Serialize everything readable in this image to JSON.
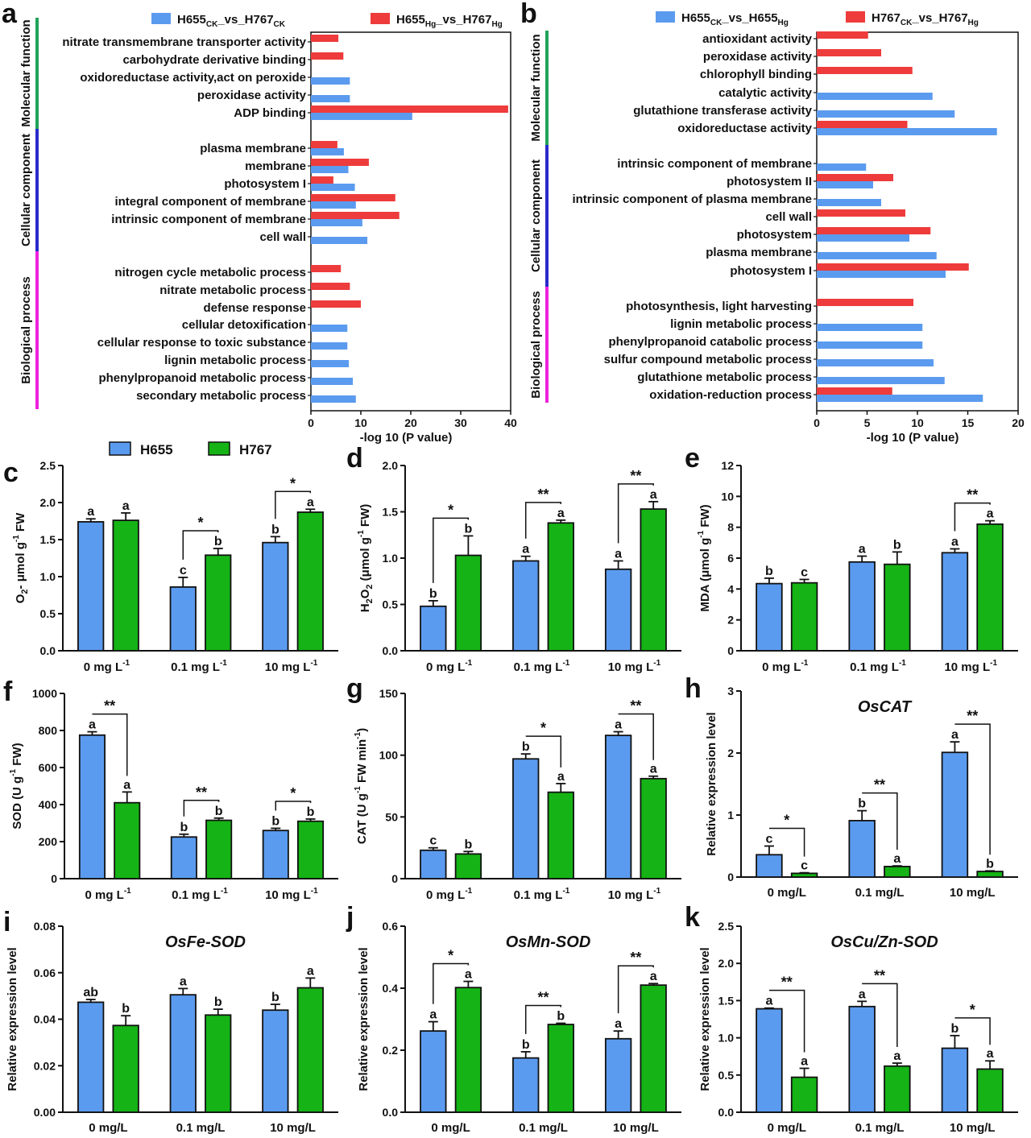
{
  "colors": {
    "blue": "#5b9bef",
    "red": "#ee3b3b",
    "green": "#15b315",
    "mf": "#22a35a",
    "cc": "#2a2acc",
    "bp": "#ee22dd"
  },
  "go_panels": [
    {
      "letter": "a",
      "xlabel": "-log 10 (P value)",
      "xlim": [
        0,
        40
      ],
      "xticks": [
        0,
        10,
        20,
        30,
        40
      ],
      "legend": [
        {
          "base": "H655",
          "sub1": "CK",
          "mid": "_vs_H767",
          "sub2": "CK",
          "color": "blue"
        },
        {
          "base": "H655",
          "sub1": "Hg",
          "mid": "_vs_H767",
          "sub2": "Hg",
          "color": "red"
        }
      ],
      "groups": [
        {
          "name": "Molecular function",
          "color": "mf",
          "terms": [
            {
              "label": "nitrate transmembrane transporter activity",
              "red": 5.5,
              "blue": null
            },
            {
              "label": "carbohydrate derivative binding",
              "red": 6.5,
              "blue": null
            },
            {
              "label": "oxidoreductase activity,act on peroxide",
              "red": null,
              "blue": 7.8
            },
            {
              "label": "peroxidase activity",
              "red": null,
              "blue": 7.8
            },
            {
              "label": "ADP binding",
              "red": 39.5,
              "blue": 20.3
            }
          ]
        },
        {
          "name": "Cellular component",
          "color": "cc",
          "terms": [
            {
              "label": "plasma membrane",
              "red": 5.3,
              "blue": 6.6
            },
            {
              "label": "membrane",
              "red": 11.6,
              "blue": 7.5
            },
            {
              "label": "photosystem I",
              "red": 4.5,
              "blue": 8.8
            },
            {
              "label": "integral component of membrane",
              "red": 16.9,
              "blue": 9.0
            },
            {
              "label": "intrinsic component of membrane",
              "red": 17.7,
              "blue": 10.3
            },
            {
              "label": "cell wall",
              "red": null,
              "blue": 11.3
            }
          ]
        },
        {
          "name": "Biological process",
          "color": "bp",
          "terms": [
            {
              "label": "nitrogen cycle metabolic process",
              "red": 6.0,
              "blue": null
            },
            {
              "label": "nitrate metabolic process",
              "red": 7.8,
              "blue": null
            },
            {
              "label": "defense response",
              "red": 10.0,
              "blue": null
            },
            {
              "label": "cellular detoxification",
              "red": null,
              "blue": 7.3
            },
            {
              "label": "cellular response to toxic substance",
              "red": null,
              "blue": 7.3
            },
            {
              "label": "lignin metabolic process",
              "red": null,
              "blue": 7.6
            },
            {
              "label": "phenylpropanoid metabolic process",
              "red": null,
              "blue": 8.4
            },
            {
              "label": "secondary metabolic process",
              "red": null,
              "blue": 9.0
            }
          ]
        }
      ]
    },
    {
      "letter": "b",
      "xlabel": "-log 10 (P value)",
      "xlim": [
        0,
        20
      ],
      "xticks": [
        0,
        5,
        10,
        15,
        20
      ],
      "legend": [
        {
          "base": "H655",
          "sub1": "CK",
          "mid": "_vs_H655",
          "sub2": "Hg",
          "color": "blue"
        },
        {
          "base": "H767",
          "sub1": "CK",
          "mid": "_vs_H767",
          "sub2": "Hg",
          "color": "red"
        }
      ],
      "groups": [
        {
          "name": "Molecular function",
          "color": "mf",
          "terms": [
            {
              "label": "antioxidant activity",
              "red": 5.1,
              "blue": null
            },
            {
              "label": "peroxidase activity",
              "red": 6.4,
              "blue": null
            },
            {
              "label": "chlorophyll binding",
              "red": 9.5,
              "blue": null
            },
            {
              "label": "catalytic activity",
              "red": null,
              "blue": 11.5
            },
            {
              "label": "glutathione transferase activity",
              "red": null,
              "blue": 13.7
            },
            {
              "label": "oxidoreductase activity",
              "red": 9.0,
              "blue": 17.9
            }
          ]
        },
        {
          "name": "Cellular component",
          "color": "cc",
          "terms": [
            {
              "label": "intrinsic component of membrane",
              "red": null,
              "blue": 4.9
            },
            {
              "label": "photosystem II",
              "red": 7.6,
              "blue": 5.6
            },
            {
              "label": "intrinsic component of plasma membrane",
              "red": null,
              "blue": 6.4
            },
            {
              "label": "cell wall",
              "red": 8.8,
              "blue": null
            },
            {
              "label": "photosystem",
              "red": 11.3,
              "blue": 9.2
            },
            {
              "label": "plasma membrane",
              "red": null,
              "blue": 11.9
            },
            {
              "label": "photosystem I",
              "red": 15.1,
              "blue": 12.8
            }
          ]
        },
        {
          "name": "Biological process",
          "color": "bp",
          "terms": [
            {
              "label": "photosynthesis, light harvesting",
              "red": 9.6,
              "blue": null
            },
            {
              "label": "lignin metabolic process",
              "red": null,
              "blue": 10.5
            },
            {
              "label": "phenylpropanoid catabolic process",
              "red": null,
              "blue": 10.5
            },
            {
              "label": "sulfur compound metabolic process",
              "red": null,
              "blue": 11.6
            },
            {
              "label": "glutathione metabolic process",
              "red": null,
              "blue": 12.7
            },
            {
              "label": "oxidation-reduction process",
              "red": 7.5,
              "blue": 16.5
            }
          ]
        }
      ]
    }
  ],
  "bar_legend": [
    {
      "name": "H655",
      "color": "blue"
    },
    {
      "name": "H767",
      "color": "green"
    }
  ],
  "chart_data": [
    {
      "letter": "c",
      "type": "bar",
      "ylabel": {
        "main": "O",
        "sub": "2",
        "tail": "- μmol g",
        "sup": "-1",
        "end": " FW"
      },
      "ylim": [
        0,
        2.5
      ],
      "yticks": [
        "0.0",
        "0.5",
        "1.0",
        "1.5",
        "2.0",
        "2.5"
      ],
      "cat_style": "unit",
      "title": "",
      "categories": [
        "0",
        "0.1",
        "10"
      ],
      "series": [
        {
          "name": "H655",
          "values": [
            1.74,
            0.86,
            1.46
          ],
          "err": [
            0.04,
            0.13,
            0.08
          ],
          "letters": [
            "a",
            "c",
            "b"
          ]
        },
        {
          "name": "H767",
          "values": [
            1.76,
            1.29,
            1.87
          ],
          "err": [
            0.1,
            0.09,
            0.04
          ],
          "letters": [
            "a",
            "b",
            "a"
          ]
        }
      ],
      "sig": [
        "",
        "*",
        "*"
      ]
    },
    {
      "letter": "d",
      "type": "bar",
      "ylabel": {
        "main": "H",
        "sub": "2",
        "tail": "O",
        "sub2": "2",
        "tail2": " (μmol g",
        "sup": "-1",
        "end": " FW)"
      },
      "ylim": [
        0,
        2.0
      ],
      "yticks": [
        "0.0",
        "0.5",
        "1.0",
        "1.5",
        "2.0"
      ],
      "cat_style": "unit",
      "title": "",
      "categories": [
        "0",
        "0.1",
        "10"
      ],
      "series": [
        {
          "name": "H655",
          "values": [
            0.48,
            0.97,
            0.88
          ],
          "err": [
            0.06,
            0.05,
            0.09
          ],
          "letters": [
            "b",
            "a",
            "a"
          ]
        },
        {
          "name": "H767",
          "values": [
            1.03,
            1.38,
            1.53
          ],
          "err": [
            0.21,
            0.03,
            0.08
          ],
          "letters": [
            "b",
            "a",
            "a"
          ]
        }
      ],
      "sig": [
        "*",
        "**",
        "**"
      ]
    },
    {
      "letter": "e",
      "type": "bar",
      "ylabel": {
        "main": "MDA (μmol g",
        "sup": "-1",
        "end": " FW)"
      },
      "ylim": [
        0,
        12
      ],
      "yticks": [
        "0",
        "2",
        "4",
        "6",
        "8",
        "10",
        "12"
      ],
      "cat_style": "unit",
      "title": "",
      "categories": [
        "0",
        "0.1",
        "10"
      ],
      "series": [
        {
          "name": "H655",
          "values": [
            4.35,
            5.75,
            6.35
          ],
          "err": [
            0.35,
            0.38,
            0.25
          ],
          "letters": [
            "b",
            "a",
            "a"
          ]
        },
        {
          "name": "H767",
          "values": [
            4.4,
            5.6,
            8.2
          ],
          "err": [
            0.22,
            0.8,
            0.22
          ],
          "letters": [
            "c",
            "b",
            "a"
          ]
        }
      ],
      "sig": [
        "",
        "",
        "**"
      ]
    },
    {
      "letter": "f",
      "type": "bar",
      "ylabel": {
        "main": "SOD (U g",
        "sup": "-1",
        "end": " FW)"
      },
      "ylim": [
        0,
        1000
      ],
      "yticks": [
        "0",
        "200",
        "400",
        "600",
        "800",
        "1000"
      ],
      "cat_style": "unit",
      "title": "",
      "categories": [
        "0",
        "0.1",
        "10"
      ],
      "series": [
        {
          "name": "H655",
          "values": [
            775,
            225,
            260
          ],
          "err": [
            18,
            15,
            12
          ],
          "letters": [
            "a",
            "b",
            "b"
          ]
        },
        {
          "name": "H767",
          "values": [
            410,
            315,
            310
          ],
          "err": [
            58,
            12,
            12
          ],
          "letters": [
            "a",
            "b",
            "b"
          ]
        }
      ],
      "sig": [
        "**",
        "**",
        "*"
      ]
    },
    {
      "letter": "g",
      "type": "bar",
      "ylabel": {
        "main": "CAT (U g",
        "sup": "-1",
        "end": " FW min",
        "sup2": "-1",
        "end2": ")"
      },
      "ylim": [
        0,
        150
      ],
      "yticks": [
        "0",
        "50",
        "100",
        "150"
      ],
      "cat_style": "unit",
      "title": "",
      "categories": [
        "0",
        "0.1",
        "10"
      ],
      "series": [
        {
          "name": "H655",
          "values": [
            23,
            97,
            116
          ],
          "err": [
            2,
            4,
            3
          ],
          "letters": [
            "c",
            "b",
            "a"
          ]
        },
        {
          "name": "H767",
          "values": [
            20,
            70,
            81
          ],
          "err": [
            2,
            7,
            2
          ],
          "letters": [
            "b",
            "a",
            "a"
          ]
        }
      ],
      "sig": [
        "",
        "*",
        "**"
      ]
    },
    {
      "letter": "h",
      "type": "bar",
      "ylabel": {
        "main": "Relative expression level"
      },
      "ylim": [
        0,
        3
      ],
      "yticks": [
        "0",
        "1",
        "2",
        "3"
      ],
      "cat_style": "mgl",
      "title": "OsCAT",
      "categories": [
        "0 mg/L",
        "0.1 mg/L",
        "10 mg/L"
      ],
      "series": [
        {
          "name": "H655",
          "values": [
            0.36,
            0.91,
            2.01
          ],
          "err": [
            0.14,
            0.16,
            0.17
          ],
          "letters": [
            "c",
            "b",
            "a"
          ]
        },
        {
          "name": "H767",
          "values": [
            0.06,
            0.17,
            0.09
          ],
          "err": [
            0.01,
            0.01,
            0.01
          ],
          "letters": [
            "c",
            "a",
            "b"
          ]
        }
      ],
      "sig": [
        "*",
        "**",
        "**"
      ]
    },
    {
      "letter": "i",
      "type": "bar",
      "ylabel": {
        "main": "Relative expression level"
      },
      "ylim": [
        0,
        0.08
      ],
      "yticks": [
        "0.00",
        "0.02",
        "0.04",
        "0.06",
        "0.08"
      ],
      "cat_style": "mgl",
      "title": "OsFe-SOD",
      "categories": [
        "0 mg/L",
        "0.1 mg/L",
        "10 mg/L"
      ],
      "series": [
        {
          "name": "H655",
          "values": [
            0.0473,
            0.0505,
            0.0439
          ],
          "err": [
            0.0012,
            0.0027,
            0.0025
          ],
          "letters": [
            "ab",
            "a",
            "b"
          ]
        },
        {
          "name": "H767",
          "values": [
            0.0373,
            0.0418,
            0.0535
          ],
          "err": [
            0.0042,
            0.0025,
            0.0042
          ],
          "letters": [
            "b",
            "b",
            "a"
          ]
        }
      ],
      "sig": [
        "",
        "",
        ""
      ]
    },
    {
      "letter": "j",
      "type": "bar",
      "ylabel": {
        "main": "Relative expression level"
      },
      "ylim": [
        0,
        0.6
      ],
      "yticks": [
        "0.0",
        "0.2",
        "0.4",
        "0.6"
      ],
      "cat_style": "mgl",
      "title": "OsMn-SOD",
      "categories": [
        "0 mg/L",
        "0.1 mg/L",
        "10 mg/L"
      ],
      "series": [
        {
          "name": "H655",
          "values": [
            0.262,
            0.175,
            0.237
          ],
          "err": [
            0.03,
            0.02,
            0.025
          ],
          "letters": [
            "a",
            "b",
            "a"
          ]
        },
        {
          "name": "H767",
          "values": [
            0.402,
            0.283,
            0.41
          ],
          "err": [
            0.02,
            0.004,
            0.005
          ],
          "letters": [
            "a",
            "b",
            "a"
          ]
        }
      ],
      "sig": [
        "*",
        "**",
        "**"
      ]
    },
    {
      "letter": "k",
      "type": "bar",
      "ylabel": {
        "main": "Relative expression level"
      },
      "ylim": [
        0,
        2.5
      ],
      "yticks": [
        "0.0",
        "0.5",
        "1.0",
        "1.5",
        "2.0",
        "2.5"
      ],
      "cat_style": "mgl",
      "title": "OsCu/Zn-SOD",
      "categories": [
        "0 mg/L",
        "0.1 mg/L",
        "10 mg/L"
      ],
      "series": [
        {
          "name": "H655",
          "values": [
            1.39,
            1.42,
            0.86
          ],
          "err": [
            0.01,
            0.07,
            0.17
          ],
          "letters": [
            "a",
            "a",
            "b"
          ]
        },
        {
          "name": "H767",
          "values": [
            0.47,
            0.62,
            0.58
          ],
          "err": [
            0.12,
            0.04,
            0.11
          ],
          "letters": [
            "a",
            "a",
            "a"
          ]
        }
      ],
      "sig": [
        "**",
        "**",
        "*"
      ]
    }
  ]
}
